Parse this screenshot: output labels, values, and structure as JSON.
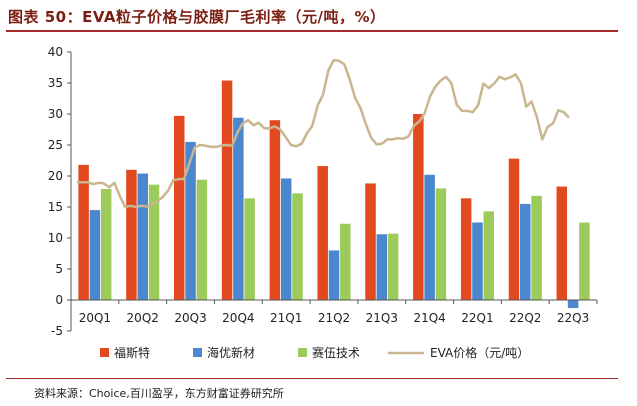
{
  "title": "图表 50：EVA粒子价格与胶膜厂毛利率（元/吨，%）",
  "source": "资料来源：Choice,百川盈孚，东方财富证券研究所",
  "colors": {
    "title": "#7a1e12",
    "rule": "#a52a2a",
    "series_1": "#e2491f",
    "series_2": "#4a87cf",
    "series_3": "#9ccb5c",
    "line": "#c9b68f"
  },
  "chart_data": {
    "type": "bar",
    "categories": [
      "20Q1",
      "20Q2",
      "20Q3",
      "20Q4",
      "21Q1",
      "21Q2",
      "21Q3",
      "21Q4",
      "22Q1",
      "22Q2",
      "22Q3"
    ],
    "ylim": [
      -5,
      40
    ],
    "yticks": [
      -5,
      0,
      5,
      10,
      15,
      20,
      25,
      30,
      35,
      40
    ],
    "grid": false,
    "legend": "bottom",
    "series": [
      {
        "name": "福斯特",
        "values": [
          21.8,
          21.0,
          29.7,
          35.4,
          29.0,
          21.6,
          18.8,
          30.0,
          16.4,
          22.8,
          18.3
        ]
      },
      {
        "name": "海优新材",
        "values": [
          14.5,
          20.4,
          25.5,
          29.4,
          19.6,
          8.0,
          10.6,
          20.2,
          12.5,
          15.5,
          -1.3
        ]
      },
      {
        "name": "赛伍技术",
        "values": [
          17.9,
          18.6,
          19.4,
          16.4,
          17.2,
          12.3,
          10.7,
          18.0,
          14.3,
          16.8,
          12.5
        ]
      }
    ],
    "line": {
      "name": "EVA价格（元/吨）",
      "values": [
        19.0,
        19.0,
        19.0,
        18.7,
        18.9,
        18.8,
        18.2,
        18.9,
        16.8,
        15.0,
        15.2,
        15.0,
        15.2,
        15.1,
        15.4,
        15.9,
        16.6,
        17.6,
        19.3,
        19.5,
        19.5,
        22.0,
        24.6,
        25.0,
        24.9,
        24.7,
        24.7,
        24.9,
        25.0,
        24.9,
        27.0,
        28.5,
        29.0,
        28.2,
        28.6,
        27.7,
        27.7,
        28.0,
        27.5,
        26.3,
        25.0,
        24.8,
        25.2,
        26.9,
        28.1,
        31.4,
        33.1,
        37.0,
        38.7,
        38.6,
        38.0,
        35.6,
        32.6,
        31.0,
        28.4,
        26.2,
        25.1,
        25.2,
        25.9,
        25.9,
        26.1,
        26.0,
        26.4,
        28.1,
        28.8,
        30.1,
        32.8,
        34.4,
        35.4,
        36.0,
        35.0,
        31.5,
        30.5,
        30.5,
        30.3,
        31.4,
        34.9,
        34.2,
        34.9,
        36.0,
        35.6,
        35.9,
        36.4,
        35.0,
        31.2,
        32.0,
        29.5,
        25.9,
        27.9,
        28.5,
        30.6,
        30.3,
        29.4
      ]
    }
  }
}
